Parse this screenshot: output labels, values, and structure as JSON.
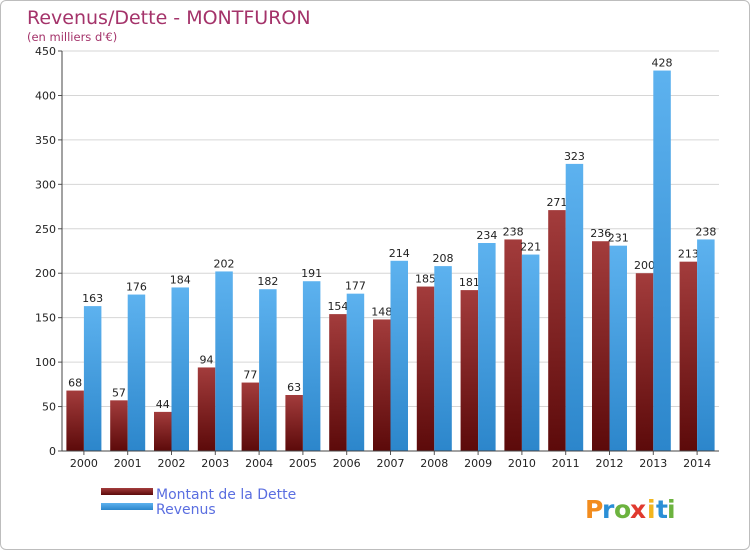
{
  "chart_data": {
    "type": "bar",
    "title": "Revenus/Dette - MONTFURON",
    "subtitle": "(en milliers d'€)",
    "categories": [
      "2000",
      "2001",
      "2002",
      "2003",
      "2004",
      "2005",
      "2006",
      "2007",
      "2008",
      "2009",
      "2010",
      "2011",
      "2012",
      "2013",
      "2014"
    ],
    "series": [
      {
        "name": "Montant de la Dette",
        "color": "#8b1f1f",
        "values": [
          68,
          57,
          44,
          94,
          77,
          63,
          154,
          148,
          185,
          181,
          238,
          271,
          236,
          200,
          213
        ]
      },
      {
        "name": "Revenus",
        "color": "#4aa3e6",
        "values": [
          163,
          176,
          184,
          202,
          182,
          191,
          177,
          214,
          208,
          234,
          221,
          323,
          231,
          428,
          238
        ]
      }
    ],
    "ylim": [
      0,
      450
    ],
    "yticks": [
      0,
      50,
      100,
      150,
      200,
      250,
      300,
      350,
      400,
      450
    ],
    "grid": true,
    "legend_position": "bottom-left",
    "logo": {
      "letters": [
        "P",
        "r",
        "o",
        "x",
        "i",
        "t",
        "i"
      ],
      "colors": [
        "#f28c1e",
        "#2b8fd6",
        "#6cb33f",
        "#e03a2f",
        "#f2b51e",
        "#2b8fd6",
        "#6cb33f"
      ]
    }
  }
}
